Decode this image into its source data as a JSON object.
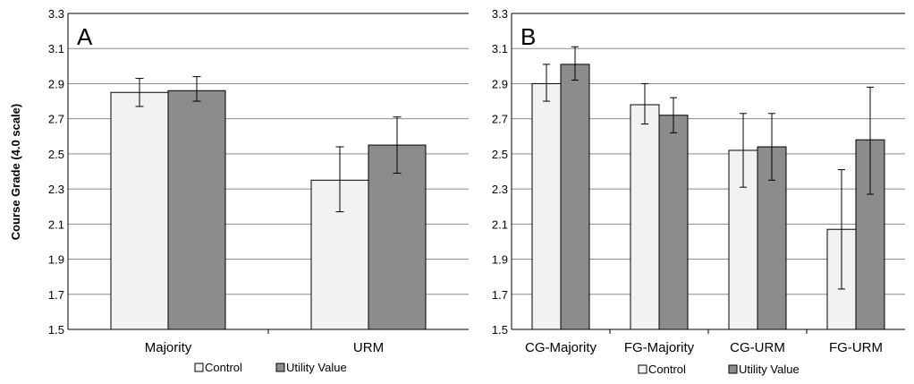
{
  "ylabel": "Course Grade (4.0 scale)",
  "legend": {
    "control": "Control",
    "utility": "Utility Value"
  },
  "colors": {
    "control": "#f2f2f2",
    "utility": "#8c8c8c",
    "grid": "#8c8c8c",
    "border": "#000000"
  },
  "chart_data": [
    {
      "type": "bar",
      "panel_label": "A",
      "ylim": [
        1.5,
        3.3
      ],
      "yticks": [
        "1.5",
        "1.7",
        "1.9",
        "2.1",
        "2.3",
        "2.5",
        "2.7",
        "2.9",
        "3.1",
        "3.3"
      ],
      "categories": [
        "Majority",
        "URM"
      ],
      "series": [
        {
          "name": "Control",
          "values": [
            2.85,
            2.35
          ],
          "err_low": [
            2.77,
            2.17
          ],
          "err_high": [
            2.93,
            2.54
          ]
        },
        {
          "name": "Utility Value",
          "values": [
            2.86,
            2.55
          ],
          "err_low": [
            2.8,
            2.39
          ],
          "err_high": [
            2.94,
            2.71
          ]
        }
      ],
      "legend_position": "bottom"
    },
    {
      "type": "bar",
      "panel_label": "B",
      "ylim": [
        1.5,
        3.3
      ],
      "yticks": [
        "1.5",
        "1.7",
        "1.9",
        "2.1",
        "2.3",
        "2.5",
        "2.7",
        "2.9",
        "3.1",
        "3.3"
      ],
      "categories": [
        "CG-Majority",
        "FG-Majority",
        "CG-URM",
        "FG-URM"
      ],
      "series": [
        {
          "name": "Control",
          "values": [
            2.9,
            2.78,
            2.52,
            2.07
          ],
          "err_low": [
            2.8,
            2.67,
            2.31,
            1.73
          ],
          "err_high": [
            3.01,
            2.9,
            2.73,
            2.41
          ]
        },
        {
          "name": "Utility Value",
          "values": [
            3.01,
            2.72,
            2.54,
            2.58
          ],
          "err_low": [
            2.92,
            2.62,
            2.35,
            2.27
          ],
          "err_high": [
            3.11,
            2.82,
            2.73,
            2.88
          ]
        }
      ],
      "legend_position": "bottom"
    }
  ]
}
